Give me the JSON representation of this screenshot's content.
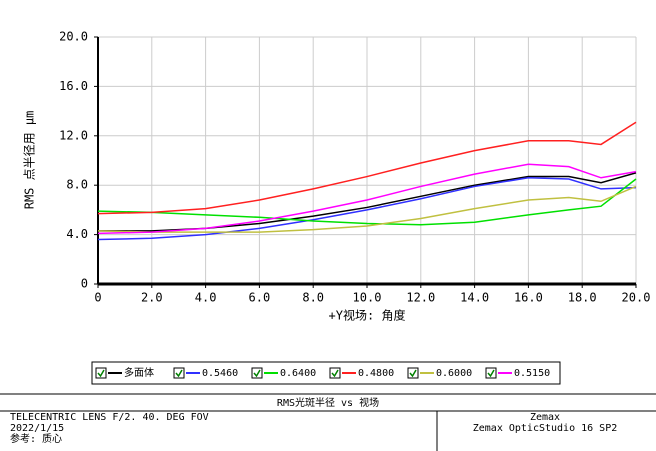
{
  "chart_data": {
    "type": "line",
    "ylabel": "RMS 点半径用 μm",
    "xlabel": "+Y视场: 角度",
    "x": [
      0,
      2,
      4,
      6,
      8,
      10,
      12,
      14,
      16,
      17.5,
      18.7,
      20
    ],
    "xlim": [
      0,
      20
    ],
    "xticks": [
      0,
      {
        "value": 2,
        "label": "2.0"
      },
      {
        "value": 4,
        "label": "4.0"
      },
      {
        "value": 6,
        "label": "6.0"
      },
      {
        "value": 8,
        "label": "8.0"
      },
      {
        "value": 10,
        "label": "10.0"
      },
      {
        "value": 12,
        "label": "12.0"
      },
      {
        "value": 14,
        "label": "14.0"
      },
      {
        "value": 16,
        "label": "16.0"
      },
      {
        "value": 18,
        "label": "18.0"
      },
      {
        "value": 20,
        "label": "20.0"
      }
    ],
    "ylim": [
      0,
      20
    ],
    "yticks": [
      0,
      {
        "value": 4,
        "label": "4.0"
      },
      {
        "value": 8,
        "label": "8.0"
      },
      {
        "value": 12,
        "label": "12.0"
      },
      {
        "value": 16,
        "label": "16.0"
      },
      {
        "value": 20,
        "label": "20.0"
      }
    ],
    "grid": true,
    "series": [
      {
        "name": "多面体",
        "color": "#000000",
        "values": [
          4.3,
          4.3,
          4.5,
          4.9,
          5.5,
          6.2,
          7.1,
          8.0,
          8.7,
          8.7,
          8.2,
          9.0
        ]
      },
      {
        "name": "0.5460",
        "color": "#3030ff",
        "values": [
          3.6,
          3.7,
          4.0,
          4.5,
          5.2,
          6.0,
          6.9,
          7.9,
          8.6,
          8.5,
          7.7,
          7.8
        ]
      },
      {
        "name": "0.6400",
        "color": "#00e000",
        "values": [
          5.9,
          5.8,
          5.6,
          5.4,
          5.1,
          4.9,
          4.8,
          5.0,
          5.6,
          6.0,
          6.3,
          8.5
        ]
      },
      {
        "name": "0.4800",
        "color": "#ff2020",
        "values": [
          5.7,
          5.8,
          6.1,
          6.8,
          7.7,
          8.7,
          9.8,
          10.8,
          11.6,
          11.6,
          11.3,
          13.1
        ]
      },
      {
        "name": "0.6000",
        "color": "#c0c040",
        "values": [
          4.3,
          4.2,
          4.2,
          4.2,
          4.4,
          4.7,
          5.3,
          6.1,
          6.8,
          7.0,
          6.7,
          7.9
        ]
      },
      {
        "name": "0.5150",
        "color": "#ff00ff",
        "values": [
          4.1,
          4.2,
          4.5,
          5.1,
          5.9,
          6.8,
          7.9,
          8.9,
          9.7,
          9.5,
          8.6,
          9.1
        ]
      }
    ]
  },
  "footer": {
    "title": "RMS光斑半径 vs 视场",
    "left": [
      "TELECENTRIC LENS F/2.  40. DEG FOV",
      "2022/1/15",
      "参考: 质心"
    ],
    "right": [
      "Zemax",
      "Zemax OpticStudio 16 SP2"
    ]
  }
}
